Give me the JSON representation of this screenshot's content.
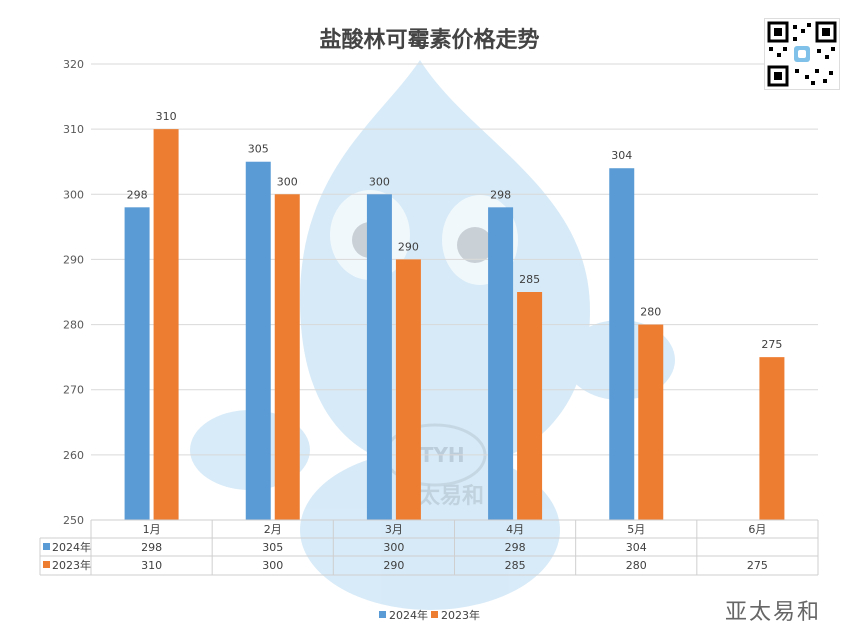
{
  "chart_data": {
    "type": "bar",
    "title": "盐酸林可霉素价格走势",
    "categories": [
      "1月",
      "2月",
      "3月",
      "4月",
      "5月",
      "6月"
    ],
    "series": [
      {
        "name": "2024年",
        "values": [
          298,
          305,
          300,
          298,
          304,
          null
        ],
        "color": "#5B9BD5"
      },
      {
        "name": "2023年",
        "values": [
          310,
          300,
          290,
          285,
          280,
          275
        ],
        "color": "#ED7D31"
      }
    ],
    "ylim": [
      250,
      320
    ],
    "yticks": [
      250,
      260,
      270,
      280,
      290,
      300,
      310,
      320
    ],
    "grid": true,
    "data_table": true,
    "legend_position": "bottom"
  },
  "watermark": {
    "brand": "亚太易和",
    "emblem": "YTYH"
  },
  "qr_code": {
    "icon": "qr-code-icon"
  }
}
